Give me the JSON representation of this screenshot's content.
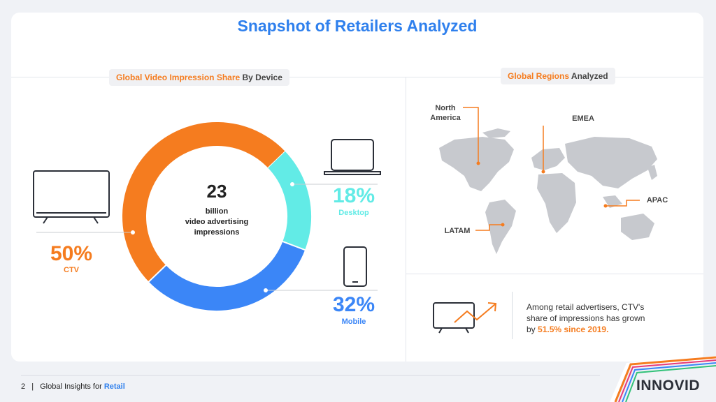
{
  "header": {
    "title": "Snapshot of Retailers Analyzed"
  },
  "device_section": {
    "label_part1": "Global Video Impression Share",
    "label_part2": " By Device",
    "center_value": "23",
    "center_line1": "billion",
    "center_line2": "video advertising",
    "center_line3": "impressions",
    "devices": [
      {
        "name": "CTV",
        "percent": "50%",
        "share": 50,
        "color": "#f57c1f"
      },
      {
        "name": "Desktop",
        "percent": "18%",
        "share": 18,
        "color": "#62ebe6"
      },
      {
        "name": "Mobile",
        "percent": "32%",
        "share": 32,
        "color": "#3b86f7"
      }
    ]
  },
  "regions_section": {
    "label_part1": "Global Regions",
    "label_part2": " Analyzed",
    "regions": {
      "north_america_1": "North",
      "north_america_2": "America",
      "emea": "EMEA",
      "apac": "APAC",
      "latam": "LATAM"
    }
  },
  "stat": {
    "line1": "Among retail advertisers, CTV's",
    "line2": "share of impressions has grown",
    "line3_prefix": "by ",
    "line3_highlight": "51.5% since 2019."
  },
  "footer": {
    "page_number": "2",
    "separator": "|",
    "text": "Global Insights for ",
    "highlight": "Retail"
  },
  "logo": {
    "text": "INNOVID"
  },
  "colors": {
    "brand_blue": "#2f80ed",
    "accent_orange": "#f57c1f"
  }
}
